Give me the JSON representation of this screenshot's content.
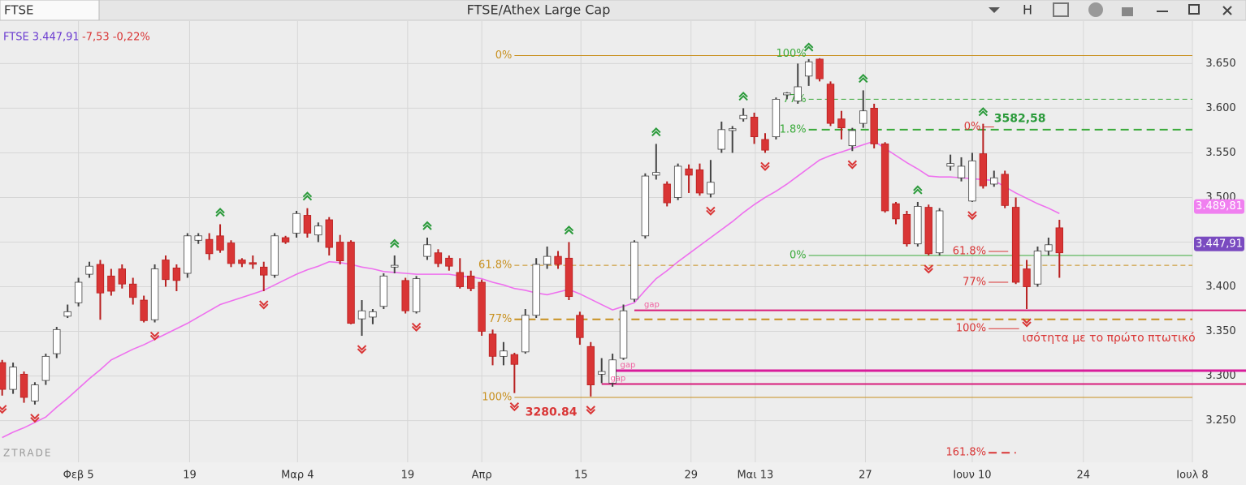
{
  "header": {
    "symbol": "FTSE",
    "title": "FTSE/Athex Large Cap",
    "button": "H"
  },
  "quote": {
    "symbol": "FTSE 3.447,91",
    "change": "-7,53 -0,22%"
  },
  "watermark": "ZTRADE",
  "chart_data": {
    "type": "candlestick",
    "x": [
      0,
      1,
      2,
      3,
      4,
      5,
      6,
      7,
      8,
      9,
      10,
      11,
      12,
      13,
      14,
      15,
      16,
      17,
      18,
      19,
      20,
      21,
      22,
      23,
      24,
      25,
      26,
      27,
      28,
      29,
      30,
      31,
      32,
      33,
      34,
      35,
      36,
      37,
      38,
      39,
      40,
      41,
      42,
      43,
      44,
      45,
      46,
      47,
      48,
      49,
      50,
      51,
      52,
      53,
      54,
      55,
      56,
      57,
      58,
      59,
      60,
      61,
      62,
      63,
      64,
      65,
      66,
      67,
      68,
      69,
      70,
      71,
      72,
      73,
      74,
      75,
      76,
      77,
      78,
      79,
      80,
      81,
      82,
      83,
      84,
      85,
      86,
      87,
      88,
      89,
      90,
      91,
      92,
      93,
      94,
      95,
      96,
      97
    ],
    "open": [
      3315,
      3285,
      3302,
      3272,
      3295,
      3325,
      3367,
      3382,
      3414,
      3425,
      3412,
      3420,
      3403,
      3385,
      3363,
      3430,
      3421,
      3415,
      3452,
      3453,
      3457,
      3449,
      3430,
      3427,
      3422,
      3413,
      3455,
      3460,
      3480,
      3458,
      3475,
      3450,
      3450,
      3364,
      3366,
      3378,
      3422,
      3407,
      3372,
      3434,
      3438,
      3432,
      3416,
      3412,
      3405,
      3347,
      3322,
      3324,
      3327,
      3368,
      3425,
      3434,
      3432,
      3368,
      3333,
      3302,
      3292,
      3320,
      3386,
      3457,
      3525,
      3515,
      3500,
      3532,
      3531,
      3504,
      3554,
      3575,
      3588,
      3590,
      3565,
      3568,
      3615,
      3608,
      3636,
      3655,
      3627,
      3588,
      3558,
      3583,
      3600,
      3560,
      3493,
      3481,
      3448,
      3489,
      3438,
      3535,
      3522,
      3496,
      3549,
      3515,
      3526,
      3489,
      3420,
      3403,
      3440,
      3466
    ],
    "high": [
      3318,
      3315,
      3305,
      3293,
      3325,
      3355,
      3380,
      3410,
      3428,
      3430,
      3420,
      3425,
      3410,
      3390,
      3425,
      3435,
      3425,
      3460,
      3460,
      3460,
      3470,
      3452,
      3432,
      3435,
      3428,
      3460,
      3457,
      3485,
      3488,
      3472,
      3478,
      3458,
      3452,
      3385,
      3375,
      3415,
      3435,
      3410,
      3412,
      3455,
      3442,
      3435,
      3432,
      3418,
      3408,
      3352,
      3338,
      3326,
      3375,
      3432,
      3445,
      3440,
      3450,
      3372,
      3338,
      3320,
      3325,
      3380,
      3452,
      3527,
      3560,
      3518,
      3538,
      3537,
      3538,
      3542,
      3585,
      3580,
      3600,
      3595,
      3572,
      3612,
      3618,
      3650,
      3655,
      3656,
      3630,
      3597,
      3578,
      3620,
      3605,
      3562,
      3495,
      3485,
      3495,
      3492,
      3488,
      3548,
      3545,
      3550,
      3582.58,
      3530,
      3530,
      3500,
      3430,
      3445,
      3455,
      3475
    ],
    "low": [
      3278,
      3280,
      3270,
      3268,
      3290,
      3320,
      3365,
      3378,
      3410,
      3363,
      3390,
      3398,
      3380,
      3360,
      3360,
      3400,
      3395,
      3410,
      3448,
      3430,
      3438,
      3422,
      3422,
      3420,
      3395,
      3410,
      3448,
      3455,
      3455,
      3450,
      3435,
      3425,
      3358,
      3345,
      3358,
      3375,
      3415,
      3370,
      3370,
      3430,
      3422,
      3418,
      3398,
      3395,
      3345,
      3312,
      3312,
      3280.84,
      3325,
      3365,
      3420,
      3420,
      3385,
      3335,
      3277,
      3292,
      3288,
      3318,
      3383,
      3454,
      3520,
      3490,
      3497,
      3505,
      3502,
      3500,
      3550,
      3550,
      3585,
      3560,
      3550,
      3565,
      3610,
      3605,
      3625,
      3630,
      3580,
      3565,
      3552,
      3578,
      3555,
      3483,
      3470,
      3445,
      3445,
      3435,
      3435,
      3530,
      3518,
      3495,
      3510,
      3512,
      3488,
      3403,
      3375,
      3400,
      3435,
      3410
    ],
    "close": [
      3285,
      3310,
      3276,
      3290,
      3322,
      3352,
      3372,
      3405,
      3423,
      3393,
      3395,
      3403,
      3388,
      3362,
      3420,
      3408,
      3407,
      3457,
      3457,
      3437,
      3441,
      3426,
      3426,
      3426,
      3413,
      3457,
      3450,
      3482,
      3460,
      3468,
      3444,
      3429,
      3359,
      3373,
      3372,
      3412,
      3424,
      3373,
      3409,
      3447,
      3426,
      3423,
      3400,
      3398,
      3350,
      3322,
      3328,
      3313,
      3368,
      3425,
      3434,
      3425,
      3389,
      3343,
      3290,
      3305,
      3318,
      3373,
      3450,
      3524,
      3528,
      3494,
      3535,
      3525,
      3505,
      3517,
      3576,
      3577,
      3592,
      3568,
      3553,
      3610,
      3617,
      3624,
      3652,
      3633,
      3583,
      3578,
      3575,
      3597,
      3560,
      3485,
      3476,
      3448,
      3490,
      3437,
      3485,
      3538,
      3535,
      3541,
      3513,
      3522,
      3491,
      3405,
      3400,
      3440,
      3447,
      3438
    ],
    "up_color": "#ffffff",
    "down_color": "#d93535",
    "moving_average": {
      "color": "#ee70ee",
      "values": [
        3231,
        3237,
        3242,
        3248,
        3254,
        3265,
        3275,
        3286,
        3297,
        3307,
        3318,
        3324,
        3330,
        3335,
        3341,
        3347,
        3353,
        3359,
        3366,
        3373,
        3380,
        3384,
        3388,
        3392,
        3396,
        3402,
        3408,
        3414,
        3419,
        3423,
        3428,
        3427,
        3425,
        3422,
        3420,
        3417,
        3416,
        3415,
        3414,
        3414,
        3414,
        3414,
        3412,
        3411,
        3409,
        3405,
        3402,
        3398,
        3396,
        3393,
        3391,
        3394,
        3397,
        3392,
        3386,
        3380,
        3374,
        3378,
        3382,
        3396,
        3409,
        3418,
        3428,
        3437,
        3446,
        3455,
        3464,
        3473,
        3483,
        3492,
        3500,
        3507,
        3515,
        3524,
        3533,
        3542,
        3547,
        3551,
        3555,
        3559,
        3563,
        3555,
        3547,
        3539,
        3532,
        3524,
        3523,
        3523,
        3522,
        3521,
        3520,
        3519,
        3512,
        3505,
        3499,
        3493,
        3488,
        3482
      ]
    },
    "xlim": [
      -0.2,
      109.2
    ],
    "xticks": [
      {
        "value": 7.0,
        "label": "Φεβ 5"
      },
      {
        "value": 17.2,
        "label": "19"
      },
      {
        "value": 27.1,
        "label": "Μαρ 4"
      },
      {
        "value": 37.2,
        "label": "19"
      },
      {
        "value": 44.0,
        "label": "Απρ"
      },
      {
        "value": 53.1,
        "label": "15"
      },
      {
        "value": 63.2,
        "label": "29"
      },
      {
        "value": 69.1,
        "label": "Μαι 13"
      },
      {
        "value": 79.2,
        "label": "27"
      },
      {
        "value": 89.0,
        "label": "Ιουν 10"
      },
      {
        "value": 99.2,
        "label": "24"
      },
      {
        "value": 109.2,
        "label": "Ιουλ 8"
      }
    ],
    "ylim": [
      3203.3,
      3697.6
    ],
    "yticks": [
      {
        "value": 3250,
        "label": "3.250"
      },
      {
        "value": 3300,
        "label": "3.300"
      },
      {
        "value": 3350,
        "label": "3.350"
      },
      {
        "value": 3400,
        "label": "3.400"
      },
      {
        "value": 3450,
        "label": "3.450"
      },
      {
        "value": 3500,
        "label": "3.500"
      },
      {
        "value": 3550,
        "label": "3.550"
      },
      {
        "value": 3600,
        "label": "3.600"
      },
      {
        "value": 3650,
        "label": "3.650"
      }
    ],
    "grid": true,
    "price_labels": [
      {
        "value": 3489.81,
        "label": "3.489,81",
        "color": "#f080f0"
      },
      {
        "value": 3447.91,
        "label": "3.447,91",
        "color": "#7a4bc0"
      }
    ],
    "signals": {
      "up": [
        20,
        28,
        36,
        39,
        52,
        60,
        68,
        74,
        79,
        84,
        90
      ],
      "down": [
        0,
        3,
        14,
        24,
        33,
        38,
        47,
        54,
        65,
        70,
        78,
        85,
        89,
        94
      ],
      "up_color": "#2a9a3a",
      "down_color": "#d93535"
    },
    "levels": [
      {
        "label": "0%",
        "value": 3659,
        "color": "#c8901e",
        "dash": "solid",
        "width": 1,
        "x": 47.0
      },
      {
        "label": "61.8%",
        "value": 3424,
        "color": "#c8901e",
        "dash": "dashed",
        "width": 1,
        "x": 47.0
      },
      {
        "label": "77%",
        "value": 3363.5,
        "color": "#c8901e",
        "dash": "dashed",
        "width": 2,
        "x": 47.0
      },
      {
        "label": "100%",
        "value": 3276,
        "color": "#c8901e",
        "dash": "solid",
        "width": 1,
        "x": 47.0
      },
      {
        "label": "100%",
        "value": 3661,
        "color": "#3aaa3a",
        "dash": "none",
        "width": 1,
        "x": 74.0
      },
      {
        "label": "77%",
        "value": 3610,
        "color": "#3aaa3a",
        "dash": "dashed",
        "width": 1,
        "x": 74.0
      },
      {
        "label": "61.8%",
        "value": 3576,
        "color": "#3aaa3a",
        "dash": "dashed",
        "width": 2,
        "x": 74.0
      },
      {
        "label": "0%",
        "value": 3435,
        "color": "#3aaa3a",
        "dash": "solid",
        "width": 1,
        "x": 74.0
      },
      {
        "label": "0%",
        "value": 3579,
        "color": "#d93535",
        "dash": "solid",
        "width": 1,
        "x": 90.0,
        "x_end": 91.0
      },
      {
        "label": "61.8%",
        "value": 3439.5,
        "color": "#d93535",
        "dash": "solid",
        "width": 1,
        "x": 90.5,
        "x_end": 92.3
      },
      {
        "label": "77%",
        "value": 3405,
        "color": "#d93535",
        "dash": "solid",
        "width": 1,
        "x": 90.5,
        "x_end": 92.3
      },
      {
        "label": "100%",
        "value": 3353,
        "color": "#d93535",
        "dash": "solid",
        "width": 1,
        "x": 90.5,
        "x_end": 93.3
      },
      {
        "label": "161.8%",
        "value": 3214,
        "color": "#d93535",
        "dash": "dashed",
        "width": 2,
        "x": 90.5,
        "x_end": 93.0
      },
      {
        "value": 3373.6,
        "color": "#d81b7a",
        "dash": "solid",
        "width": 2,
        "x": 58.0,
        "extend": true
      },
      {
        "value": 3306,
        "color": "#d81b9a",
        "dash": "solid",
        "width": 3,
        "x": 55.7,
        "extend": true
      },
      {
        "value": 3291,
        "color": "#d81b7a",
        "dash": "solid",
        "width": 2,
        "x": 55.0,
        "extend": true
      }
    ],
    "annotations": [
      {
        "text": "3582,58",
        "value": 3582.58,
        "x": 91.0,
        "color": "#2a9a3a",
        "place": "above",
        "bold": true
      },
      {
        "text": "3280.84",
        "value": 3280.84,
        "x": 48.0,
        "color": "#d93535",
        "place": "below",
        "bold": true
      },
      {
        "text": "ισότητα με το πρώτο πτωτικό",
        "value": 3353,
        "x": 93.6,
        "color": "#d93535",
        "place": "below",
        "bold": false
      },
      {
        "text": "gap",
        "value": 3373.6,
        "x": 58.9,
        "color": "#f060a0",
        "place": "above",
        "bold": false
      },
      {
        "text": "gap",
        "value": 3306,
        "x": 56.7,
        "color": "#f060a0",
        "place": "above",
        "bold": false
      },
      {
        "text": "gap",
        "value": 3291,
        "x": 55.8,
        "color": "#f060a0",
        "place": "above",
        "bold": false
      }
    ]
  }
}
